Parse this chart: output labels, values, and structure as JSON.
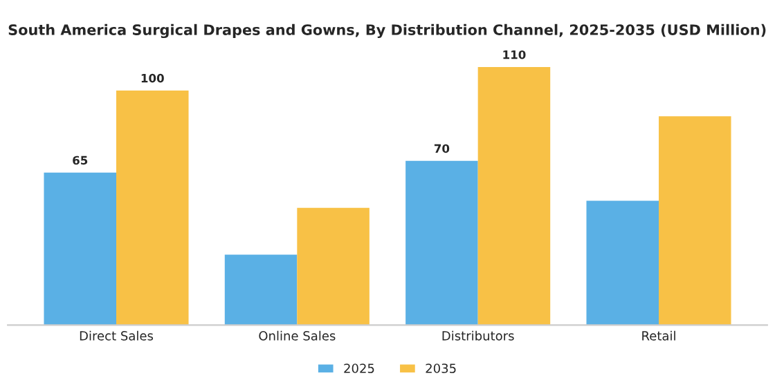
{
  "chart_data": {
    "type": "bar",
    "title": "South America Surgical Drapes and Gowns, By Distribution Channel, 2025-2035 (USD Million)",
    "categories": [
      "Direct Sales",
      "Online Sales",
      "Distributors",
      "Retail"
    ],
    "series": [
      {
        "name": "2025",
        "color": "#5ab0e5",
        "values": [
          65,
          30,
          70,
          53
        ],
        "value_labels": [
          "65",
          null,
          "70",
          null
        ]
      },
      {
        "name": "2035",
        "color": "#f8c146",
        "values": [
          100,
          50,
          110,
          89
        ],
        "value_labels": [
          "100",
          null,
          "110",
          null
        ]
      }
    ],
    "legend": "bottom",
    "grid": false
  }
}
